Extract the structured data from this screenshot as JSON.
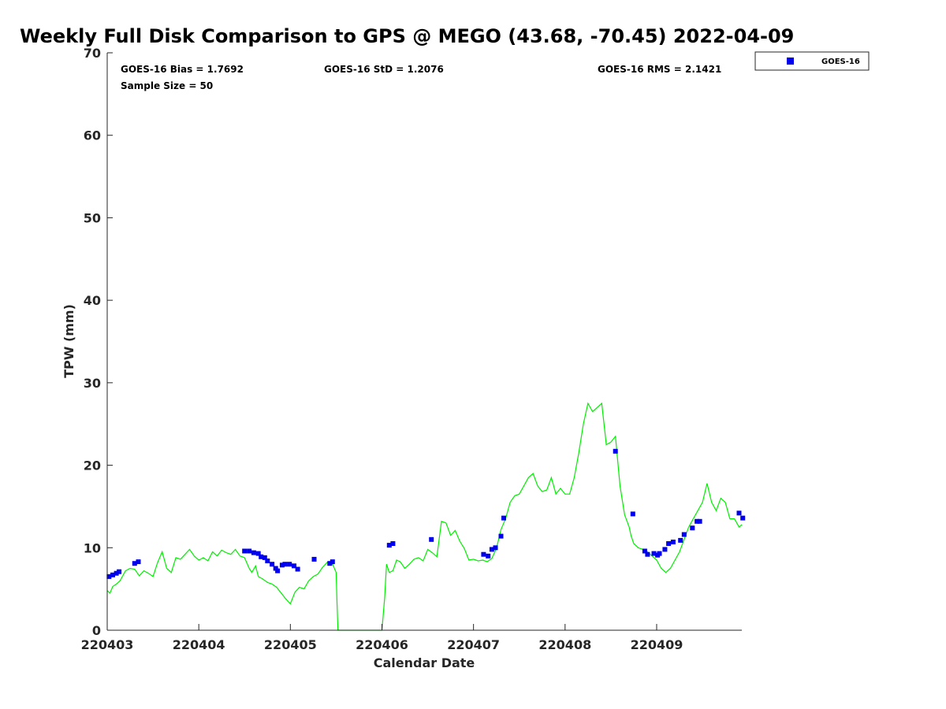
{
  "chart_data": {
    "type": "scatter",
    "title": "Weekly Full Disk Comparison to GPS @ MEGO (43.68, -70.45) 2022-04-09",
    "xlabel": "Calendar Date",
    "ylabel": "TPW (mm)",
    "xlim": [
      220403,
      220409.93
    ],
    "ylim": [
      0,
      70
    ],
    "yticks": [
      0,
      10,
      20,
      30,
      40,
      50,
      60,
      70
    ],
    "xticks": [
      220403,
      220404,
      220405,
      220406,
      220407,
      220408,
      220409
    ],
    "grid": false,
    "legend_position": "top-right",
    "colors": {
      "goes16": "#0000ee",
      "gps": "#00ee00"
    },
    "stats": [
      {
        "label": "GOES-16 Bias = 1.7692"
      },
      {
        "label": "GOES-16 StD = 1.2076"
      },
      {
        "label": "GOES-16 RMS = 2.1421"
      },
      {
        "label": "Sample Size = 50"
      }
    ],
    "series": [
      {
        "name": "GOES-16",
        "mark": "square",
        "x": [
          220403.02,
          220403.06,
          220403.1,
          220403.13,
          220403.3,
          220403.34,
          220404.5,
          220404.55,
          220404.6,
          220404.65,
          220404.68,
          220404.72,
          220404.75,
          220404.8,
          220404.84,
          220404.86,
          220404.91,
          220404.94,
          220404.99,
          220405.04,
          220405.08,
          220405.26,
          220405.43,
          220405.46,
          220406.08,
          220406.12,
          220406.54,
          220407.11,
          220407.16,
          220407.2,
          220407.24,
          220407.3,
          220407.33,
          220408.55,
          220408.74,
          220408.87,
          220408.9,
          220408.97,
          220409.01,
          220409.03,
          220409.09,
          220409.13,
          220409.18,
          220409.26,
          220409.3,
          220409.39,
          220409.44,
          220409.47,
          220409.9,
          220409.94
        ],
        "y": [
          6.5,
          6.7,
          6.9,
          7.1,
          8.1,
          8.3,
          9.6,
          9.6,
          9.4,
          9.3,
          8.9,
          8.8,
          8.4,
          8.0,
          7.5,
          7.2,
          7.9,
          8.0,
          8.0,
          7.8,
          7.4,
          8.6,
          8.1,
          8.3,
          10.3,
          10.5,
          11.0,
          9.2,
          9.0,
          9.8,
          10.0,
          11.4,
          13.6,
          21.7,
          14.1,
          9.6,
          9.2,
          9.3,
          9.1,
          9.3,
          9.8,
          10.5,
          10.7,
          10.9,
          11.6,
          12.4,
          13.2,
          13.2,
          14.2,
          13.6
        ]
      },
      {
        "name": "",
        "mark": "line",
        "x": [
          220403.0,
          220403.03,
          220403.06,
          220403.1,
          220403.14,
          220403.2,
          220403.25,
          220403.3,
          220403.35,
          220403.4,
          220403.45,
          220403.5,
          220403.55,
          220403.6,
          220403.65,
          220403.7,
          220403.75,
          220403.8,
          220403.85,
          220403.9,
          220403.95,
          220404.0,
          220404.05,
          220404.1,
          220404.15,
          220404.2,
          220404.25,
          220404.3,
          220404.35,
          220404.4,
          220404.45,
          220404.5,
          220404.55,
          220404.58,
          220404.62,
          220404.65,
          220404.7,
          220404.75,
          220404.8,
          220404.85,
          220404.9,
          220404.95,
          220405.0,
          220405.05,
          220405.1,
          220405.15,
          220405.2,
          220405.25,
          220405.3,
          220405.35,
          220405.4,
          220405.45,
          220405.5,
          220405.51,
          220405.52,
          220406.0,
          220406.03,
          220406.05,
          220406.08,
          220406.12,
          220406.16,
          220406.2,
          220406.25,
          220406.3,
          220406.35,
          220406.4,
          220406.45,
          220406.5,
          220406.55,
          220406.6,
          220406.65,
          220406.7,
          220406.75,
          220406.8,
          220406.85,
          220406.9,
          220406.95,
          220407.0,
          220407.05,
          220407.1,
          220407.15,
          220407.2,
          220407.25,
          220407.3,
          220407.35,
          220407.4,
          220407.45,
          220407.5,
          220407.55,
          220407.6,
          220407.65,
          220407.7,
          220407.75,
          220407.8,
          220407.85,
          220407.9,
          220407.95,
          220408.0,
          220408.05,
          220408.1,
          220408.15,
          220408.2,
          220408.25,
          220408.3,
          220408.35,
          220408.4,
          220408.45,
          220408.5,
          220408.55,
          220408.6,
          220408.65,
          220408.7,
          220408.72,
          220408.75,
          220408.8,
          220408.85,
          220408.9,
          220408.95,
          220409.0,
          220409.05,
          220409.1,
          220409.15,
          220409.2,
          220409.25,
          220409.3,
          220409.35,
          220409.4,
          220409.45,
          220409.5,
          220409.55,
          220409.6,
          220409.65,
          220409.7,
          220409.75,
          220409.8,
          220409.85,
          220409.9,
          220409.93
        ],
        "y": [
          4.8,
          4.5,
          5.3,
          5.6,
          6.0,
          7.2,
          7.5,
          7.4,
          6.6,
          7.2,
          6.9,
          6.5,
          8.2,
          9.5,
          7.5,
          7.0,
          8.8,
          8.6,
          9.2,
          9.8,
          9.0,
          8.5,
          8.8,
          8.4,
          9.5,
          9.0,
          9.7,
          9.4,
          9.2,
          9.8,
          9.0,
          8.8,
          7.5,
          7.0,
          7.8,
          6.5,
          6.2,
          5.8,
          5.6,
          5.2,
          4.5,
          3.8,
          3.2,
          4.6,
          5.2,
          5.0,
          6.0,
          6.5,
          6.8,
          7.6,
          8.2,
          8.3,
          7.0,
          3.0,
          0,
          0,
          4.0,
          8.0,
          7.0,
          7.2,
          8.5,
          8.3,
          7.5,
          8.0,
          8.6,
          8.8,
          8.4,
          9.8,
          9.4,
          8.9,
          13.2,
          13.0,
          11.5,
          12.1,
          10.8,
          9.9,
          8.5,
          8.6,
          8.4,
          8.5,
          8.3,
          8.7,
          9.9,
          12.2,
          13.5,
          15.5,
          16.3,
          16.5,
          17.5,
          18.5,
          19.0,
          17.5,
          16.8,
          17.0,
          18.5,
          16.5,
          17.2,
          16.5,
          16.5,
          18.5,
          21.5,
          25.0,
          27.5,
          26.5,
          27.0,
          27.5,
          22.5,
          22.8,
          23.5,
          17.5,
          14.0,
          12.5,
          11.5,
          10.5,
          10.0,
          9.8,
          9.5,
          9.0,
          8.5,
          7.5,
          7.0,
          7.5,
          8.5,
          9.5,
          11.0,
          12.5,
          13.5,
          14.5,
          15.5,
          17.8,
          15.5,
          14.5,
          16.0,
          15.5,
          13.5,
          13.5,
          12.5,
          12.8
        ]
      }
    ]
  }
}
